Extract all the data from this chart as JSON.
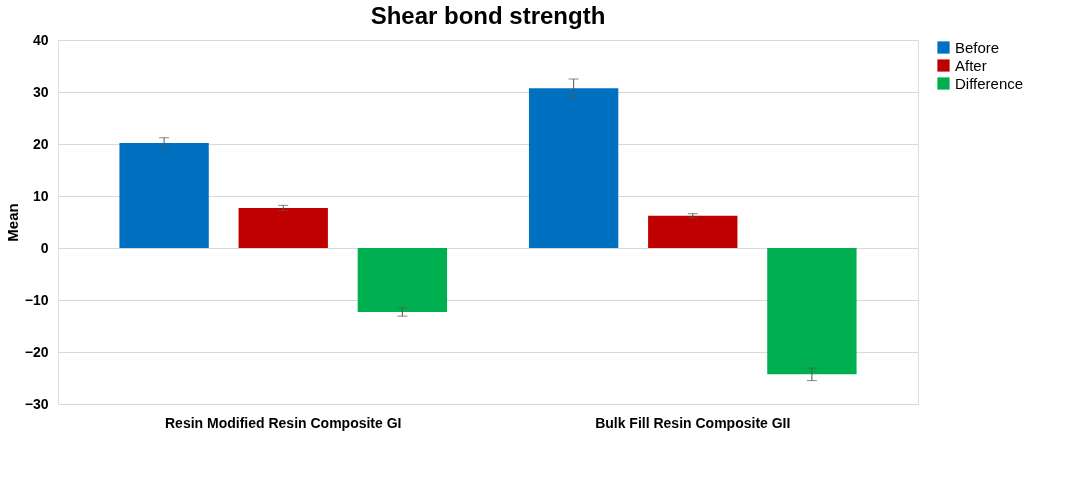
{
  "chart_data": {
    "type": "bar",
    "title": "Shear bond strength",
    "ylabel": "Mean",
    "categories": [
      "Resin Modified Resin Composite GI",
      "Bulk Fill Resin Composite GII"
    ],
    "series": [
      {
        "name": "Before",
        "color": "#0070c0",
        "values": [
          20.2,
          30.7
        ],
        "errors": [
          1.0,
          1.8
        ]
      },
      {
        "name": "After",
        "color": "#c00000",
        "values": [
          7.7,
          6.2
        ],
        "errors": [
          0.5,
          0.4
        ]
      },
      {
        "name": "Difference",
        "color": "#00b050",
        "values": [
          -12.3,
          -24.3
        ],
        "errors": [
          0.8,
          1.2
        ]
      }
    ],
    "ylim": [
      -30,
      40
    ],
    "yticks": [
      -30,
      -20,
      -10,
      0,
      10,
      20,
      30,
      40
    ],
    "grid": "y",
    "legend": "right"
  }
}
